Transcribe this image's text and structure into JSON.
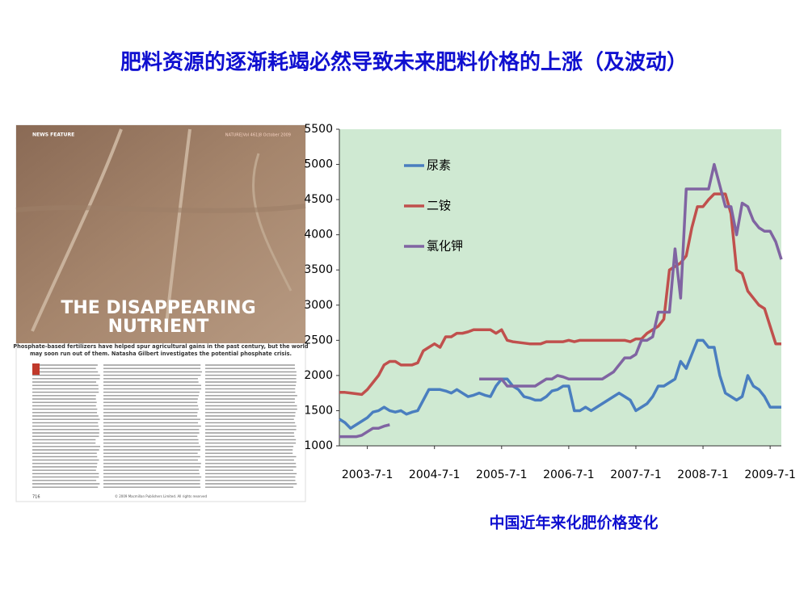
{
  "title": "肥料资源的逐渐耗竭必然导致未来肥料价格的上涨（及波动）",
  "caption": "中国近年来化肥价格变化",
  "article": {
    "section": "NEWS FEATURE",
    "journal": "NATURE|Vol 461|8 October 2009",
    "headline": [
      "THE DISAPPEARING",
      "NUTRIENT"
    ],
    "standfirst": [
      "Phosphate-based fertilizers have helped spur agricultural gains in the past century, but the world",
      "may soon run out of them. Natasha Gilbert investigates the potential phosphate crisis."
    ],
    "page": "716",
    "footer": "© 2009 Macmillan Publishers Limited. All rights reserved"
  },
  "chart_data": {
    "type": "line",
    "x": [
      "2003-2-1",
      "2003-3-1",
      "2003-4-1",
      "2003-5-1",
      "2003-6-1",
      "2003-7-1",
      "2003-8-1",
      "2003-9-1",
      "2003-10-1",
      "2003-11-1",
      "2003-12-1",
      "2004-1-1",
      "2004-2-1",
      "2004-3-1",
      "2004-4-1",
      "2004-5-1",
      "2004-6-1",
      "2004-7-1",
      "2004-8-1",
      "2004-9-1",
      "2004-10-1",
      "2004-11-1",
      "2004-12-1",
      "2005-1-1",
      "2005-2-1",
      "2005-3-1",
      "2005-4-1",
      "2005-5-1",
      "2005-6-1",
      "2005-7-1",
      "2005-8-1",
      "2005-9-1",
      "2005-10-1",
      "2005-11-1",
      "2005-12-1",
      "2006-1-1",
      "2006-2-1",
      "2006-3-1",
      "2006-4-1",
      "2006-5-1",
      "2006-6-1",
      "2006-7-1",
      "2006-8-1",
      "2006-9-1",
      "2006-10-1",
      "2006-11-1",
      "2006-12-1",
      "2007-1-1",
      "2007-2-1",
      "2007-3-1",
      "2007-4-1",
      "2007-5-1",
      "2007-6-1",
      "2007-7-1",
      "2007-8-1",
      "2007-9-1",
      "2007-10-1",
      "2007-11-1",
      "2007-12-1",
      "2008-1-1",
      "2008-2-1",
      "2008-3-1",
      "2008-4-1",
      "2008-5-1",
      "2008-6-1",
      "2008-7-1",
      "2008-8-1",
      "2008-9-1",
      "2008-10-1",
      "2008-11-1",
      "2008-12-1",
      "2009-1-1",
      "2009-2-1",
      "2009-3-1",
      "2009-4-1",
      "2009-5-1",
      "2009-6-1",
      "2009-7-1",
      "2009-8-1",
      "2009-9-1"
    ],
    "series": [
      {
        "name": "尿素",
        "color": "#4a7ebf",
        "values": [
          1380,
          1330,
          1250,
          1300,
          1350,
          1400,
          1480,
          1500,
          1550,
          1500,
          1480,
          1500,
          1450,
          1480,
          1500,
          1650,
          1800,
          1800,
          1800,
          1780,
          1750,
          1800,
          1750,
          1700,
          1720,
          1750,
          1720,
          1700,
          1850,
          1950,
          1950,
          1850,
          1800,
          1700,
          1680,
          1650,
          1650,
          1700,
          1780,
          1800,
          1850,
          1850,
          1500,
          1500,
          1550,
          1500,
          1550,
          1600,
          1650,
          1700,
          1750,
          1700,
          1650,
          1500,
          1550,
          1600,
          1700,
          1850,
          1850,
          1900,
          1950,
          2200,
          2100,
          2300,
          2500,
          2500,
          2400,
          2400,
          2000,
          1750,
          1700,
          1650,
          1700,
          2000,
          1850,
          1800,
          1700,
          1550,
          1550,
          1550
        ]
      },
      {
        "name": "二铵",
        "color": "#c0504d",
        "values": [
          1760,
          1760,
          1750,
          1740,
          1730,
          1800,
          1900,
          2000,
          2150,
          2200,
          2200,
          2150,
          2150,
          2150,
          2180,
          2350,
          2400,
          2450,
          2400,
          2550,
          2550,
          2600,
          2600,
          2620,
          2650,
          2650,
          2650,
          2650,
          2600,
          2650,
          2500,
          2480,
          2470,
          2460,
          2450,
          2450,
          2450,
          2480,
          2480,
          2480,
          2480,
          2500,
          2480,
          2500,
          2500,
          2500,
          2500,
          2500,
          2500,
          2500,
          2500,
          2500,
          2480,
          2520,
          2520,
          2600,
          2650,
          2700,
          2800,
          3500,
          3550,
          3600,
          3700,
          4100,
          4400,
          4400,
          4500,
          4580,
          4580,
          4580,
          4300,
          3500,
          3450,
          3200,
          3100,
          3000,
          2950,
          2700,
          2450,
          2450
        ]
      },
      {
        "name": "氯化钾",
        "color": "#8064a2",
        "values": [
          1130,
          1130,
          1130,
          1130,
          1150,
          1200,
          1250,
          1250,
          1280,
          1300,
          null,
          null,
          null,
          null,
          null,
          null,
          null,
          null,
          null,
          null,
          null,
          null,
          null,
          null,
          null,
          1950,
          1950,
          1950,
          1950,
          1950,
          1850,
          1850,
          1850,
          1850,
          1850,
          1850,
          1900,
          1950,
          1950,
          2000,
          1980,
          1950,
          1950,
          1950,
          1950,
          1950,
          1950,
          1950,
          2000,
          2050,
          2150,
          2250,
          2250,
          2300,
          2500,
          2500,
          2550,
          2900,
          2900,
          2900,
          3800,
          3100,
          4650,
          4650,
          4650,
          4650,
          4650,
          5000,
          4700,
          4400,
          4400,
          4000,
          4450,
          4400,
          4200,
          4100,
          4050,
          4050,
          3900,
          3650
        ]
      }
    ],
    "xlim": [
      "2003-2-1",
      "2009-9-1"
    ],
    "xticks": [
      "2003-7-1",
      "2004-7-1",
      "2005-7-1",
      "2006-7-1",
      "2007-7-1",
      "2008-7-1",
      "2009-7-1"
    ],
    "ylim": [
      1000,
      5500
    ],
    "yticks": [
      1000,
      1500,
      2000,
      2500,
      3000,
      3500,
      4000,
      4500,
      5000,
      5500
    ],
    "background": "#cfe9d2",
    "legend": "upper left",
    "grid": false
  }
}
